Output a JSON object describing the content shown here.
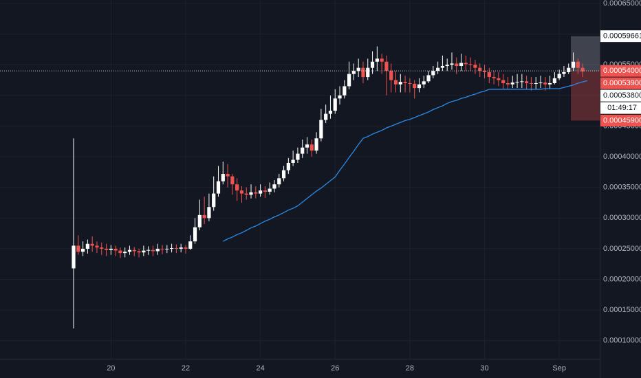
{
  "chart_data": {
    "type": "candlestick",
    "categories": [
      null,
      null,
      null,
      null,
      null,
      null,
      null,
      null,
      "20",
      null,
      null,
      null,
      null,
      null,
      null,
      null,
      null,
      null,
      null,
      null,
      null,
      null,
      null,
      null,
      "22",
      null,
      null,
      null,
      null,
      null,
      null,
      null,
      null,
      null,
      null,
      null,
      null,
      null,
      null,
      null,
      "24",
      null,
      null,
      null,
      null,
      null,
      null,
      null,
      null,
      null,
      null,
      null,
      null,
      null,
      null,
      null,
      "26",
      null,
      null,
      null,
      null,
      null,
      null,
      null,
      null,
      null,
      null,
      null,
      null,
      null,
      null,
      null,
      "28",
      null,
      null,
      null,
      null,
      null,
      null,
      null,
      null,
      null,
      null,
      null,
      null,
      null,
      null,
      null,
      "30",
      null,
      null,
      null,
      null,
      null,
      null,
      null,
      null,
      null,
      null,
      null,
      null,
      null,
      null,
      null,
      "Sep",
      null,
      null,
      null,
      null,
      null
    ],
    "open": [
      0.000218,
      0.000255,
      0.000245,
      0.00025,
      0.000258,
      0.000255,
      0.000252,
      0.00025,
      0.000248,
      0.00025,
      0.000247,
      0.000243,
      0.000245,
      0.000248,
      0.000246,
      0.000244,
      0.000247,
      0.000248,
      0.000246,
      0.00025,
      0.000249,
      0.00025,
      0.000251,
      0.00025,
      0.000252,
      0.00025,
      0.000262,
      0.000285,
      0.000305,
      0.0003,
      0.000318,
      0.00034,
      0.00036,
      0.000372,
      0.000368,
      0.000355,
      0.000345,
      0.00034,
      0.000338,
      0.000342,
      0.00034,
      0.000345,
      0.000343,
      0.000348,
      0.000355,
      0.000365,
      0.000378,
      0.00039,
      0.000395,
      0.000405,
      0.000415,
      0.00042,
      0.00041,
      0.00043,
      0.00046,
      0.00047,
      0.000475,
      0.000495,
      0.0005,
      0.000515,
      0.000535,
      0.00054,
      0.000545,
      0.00053,
      0.000545,
      0.000555,
      0.00056,
      0.000555,
      0.00054,
      0.000525,
      0.000518,
      0.000522,
      0.00052,
      0.000519,
      0.000512,
      0.000518,
      0.000523,
      0.000533,
      0.00054,
      0.000545,
      0.000548,
      0.00055,
      0.000552,
      0.000548,
      0.000553,
      0.000551,
      0.00055,
      0.000545,
      0.00054,
      0.000538,
      0.00053,
      0.000528,
      0.000525,
      0.00052,
      0.000518,
      0.000521,
      0.000522,
      0.000523,
      0.00052,
      0.000519,
      0.00052,
      0.000521,
      0.000518,
      0.00052,
      0.000528,
      0.000535,
      0.000538,
      0.000545,
      0.000555,
      0.000545
    ],
    "high": [
      0.00043,
      0.000272,
      0.000262,
      0.000265,
      0.00027,
      0.000262,
      0.00026,
      0.000258,
      0.000256,
      0.000255,
      0.000252,
      0.000252,
      0.000255,
      0.000253,
      0.00025,
      0.000255,
      0.000254,
      0.000255,
      0.000258,
      0.000256,
      0.000256,
      0.000258,
      0.000257,
      0.000258,
      0.000256,
      0.000272,
      0.0003,
      0.00033,
      0.000335,
      0.00034,
      0.000368,
      0.000385,
      0.000392,
      0.000388,
      0.000372,
      0.000365,
      0.000352,
      0.00035,
      0.000355,
      0.000352,
      0.000355,
      0.000352,
      0.000358,
      0.000362,
      0.000372,
      0.000385,
      0.000398,
      0.00041,
      0.000415,
      0.000428,
      0.000432,
      0.000428,
      0.00044,
      0.000478,
      0.000485,
      0.0005,
      0.00051,
      0.000515,
      0.000525,
      0.000555,
      0.000552,
      0.00056,
      0.000555,
      0.00056,
      0.000572,
      0.00058,
      0.000568,
      0.000565,
      0.000552,
      0.00054,
      0.000535,
      0.000532,
      0.000528,
      0.000525,
      0.000528,
      0.000532,
      0.00054,
      0.000548,
      0.000555,
      0.000565,
      0.00056,
      0.00057,
      0.000562,
      0.000568,
      0.000565,
      0.000562,
      0.000558,
      0.000552,
      0.00055,
      0.000545,
      0.00054,
      0.000538,
      0.000535,
      0.00053,
      0.000532,
      0.000535,
      0.000535,
      0.000532,
      0.00053,
      0.00053,
      0.000532,
      0.00053,
      0.000532,
      0.000538,
      0.000542,
      0.000548,
      0.000552,
      0.00057,
      0.00056,
      0.000552
    ],
    "low": [
      0.00012,
      0.00024,
      0.000238,
      0.000242,
      0.000245,
      0.000243,
      0.00024,
      0.000238,
      0.00024,
      0.000238,
      0.000235,
      0.000236,
      0.00024,
      0.000238,
      0.000236,
      0.000238,
      0.00024,
      0.000238,
      0.00024,
      0.000241,
      0.000243,
      0.000244,
      0.000243,
      0.000244,
      0.000242,
      0.000248,
      0.000258,
      0.00028,
      0.00029,
      0.000295,
      0.000312,
      0.000335,
      0.000355,
      0.00035,
      0.000338,
      0.000328,
      0.000325,
      0.00033,
      0.000332,
      0.000332,
      0.000335,
      0.000333,
      0.000338,
      0.000342,
      0.00035,
      0.00036,
      0.000372,
      0.000385,
      0.00039,
      0.000398,
      0.000405,
      0.0004,
      0.000405,
      0.000425,
      0.000455,
      0.000462,
      0.00047,
      0.000485,
      0.000495,
      0.00051,
      0.000525,
      0.00053,
      0.00052,
      0.000525,
      0.000535,
      0.00054,
      0.000535,
      0.0005,
      0.000505,
      0.000505,
      0.000505,
      0.000505,
      0.000505,
      0.000495,
      0.000505,
      0.000512,
      0.00052,
      0.000528,
      0.000535,
      0.00054,
      0.00054,
      0.000542,
      0.000535,
      0.00054,
      0.00054,
      0.00054,
      0.000535,
      0.00053,
      0.000528,
      0.00052,
      0.000518,
      0.000515,
      0.00051,
      0.00051,
      0.000512,
      0.000512,
      0.000512,
      0.00051,
      0.000508,
      0.00051,
      0.000512,
      0.000508,
      0.00051,
      0.000518,
      0.000525,
      0.00053,
      0.000535,
      0.00054,
      0.000535,
      0.00053
    ],
    "close": [
      0.000255,
      0.000245,
      0.00025,
      0.000258,
      0.000255,
      0.000252,
      0.00025,
      0.000248,
      0.00025,
      0.000247,
      0.000243,
      0.000245,
      0.000248,
      0.000246,
      0.000244,
      0.000247,
      0.000248,
      0.000246,
      0.00025,
      0.000249,
      0.00025,
      0.000251,
      0.00025,
      0.000252,
      0.00025,
      0.000262,
      0.000285,
      0.000305,
      0.0003,
      0.000318,
      0.00034,
      0.00036,
      0.000372,
      0.000368,
      0.000355,
      0.000345,
      0.00034,
      0.000338,
      0.000342,
      0.00034,
      0.000345,
      0.000343,
      0.000348,
      0.000355,
      0.000365,
      0.000378,
      0.00039,
      0.000395,
      0.000405,
      0.000415,
      0.00042,
      0.00041,
      0.00043,
      0.00046,
      0.00047,
      0.000475,
      0.000495,
      0.0005,
      0.000515,
      0.000535,
      0.00054,
      0.000545,
      0.00053,
      0.000545,
      0.000555,
      0.00056,
      0.000555,
      0.00054,
      0.000525,
      0.000518,
      0.000522,
      0.00052,
      0.000519,
      0.000512,
      0.000518,
      0.000523,
      0.000533,
      0.00054,
      0.000545,
      0.000548,
      0.00055,
      0.000552,
      0.000548,
      0.000553,
      0.000551,
      0.00055,
      0.000545,
      0.00054,
      0.000538,
      0.00053,
      0.000528,
      0.000525,
      0.00052,
      0.000518,
      0.000521,
      0.000522,
      0.000523,
      0.00052,
      0.000519,
      0.00052,
      0.000521,
      0.000518,
      0.00052,
      0.000528,
      0.000535,
      0.000538,
      0.000545,
      0.000555,
      0.000545,
      0.000539
    ],
    "up_color": "#ffffff",
    "down_color": "#ef5350",
    "moving_average": {
      "color": "#2a8be8",
      "values": [
        null,
        null,
        null,
        null,
        null,
        null,
        null,
        null,
        null,
        null,
        null,
        null,
        null,
        null,
        null,
        null,
        null,
        null,
        null,
        null,
        null,
        null,
        null,
        null,
        null,
        null,
        null,
        null,
        null,
        null,
        null,
        null,
        0.000262,
        0.000266,
        0.000269,
        0.000273,
        0.000276,
        0.00028,
        0.000284,
        0.000287,
        0.000291,
        0.000295,
        0.000298,
        0.000302,
        0.000305,
        0.000309,
        0.000313,
        0.000316,
        0.00032,
        0.000326,
        0.000332,
        0.000338,
        0.000344,
        0.000349,
        0.000355,
        0.000361,
        0.000367,
        0.000378,
        0.000388,
        0.000399,
        0.000409,
        0.00042,
        0.00043,
        0.000433,
        0.000437,
        0.00044,
        0.000443,
        0.000447,
        0.00045,
        0.000453,
        0.000456,
        0.000459,
        0.000461,
        0.000464,
        0.000467,
        0.00047,
        0.000473,
        0.000477,
        0.00048,
        0.000483,
        0.000487,
        0.00049,
        0.000492,
        0.000495,
        0.000497,
        0.0005,
        0.000502,
        0.000505,
        0.000507,
        0.00051,
        0.00051,
        0.00051,
        0.00051,
        0.00051,
        0.00051,
        0.00051,
        0.00051,
        0.00051,
        0.00051,
        0.00051,
        0.00051,
        0.000511,
        0.000511,
        0.000511,
        0.000511,
        0.000513,
        0.000515,
        0.000517,
        0.00052,
        0.000522,
        0.000524
      ]
    },
    "ylim": [
      7.06e-05,
      0.0006556
    ],
    "yticks": [
      {
        "value": 0.0001,
        "label": "0.00010000"
      },
      {
        "value": 0.00015,
        "label": "0.00015000"
      },
      {
        "value": 0.0002,
        "label": "0.00020000"
      },
      {
        "value": 0.00025,
        "label": "0.00025000"
      },
      {
        "value": 0.0003,
        "label": "0.00030000"
      },
      {
        "value": 0.00035,
        "label": "0.00035000"
      },
      {
        "value": 0.0004,
        "label": "0.00040000"
      },
      {
        "value": 0.00045,
        "label": "0.00045000"
      },
      {
        "value": 0.0005,
        "label": "0.00050000"
      },
      {
        "value": 0.00055,
        "label": "0.00055000"
      },
      {
        "value": 0.0006,
        "label": "0.00060000"
      },
      {
        "value": 0.00065,
        "label": "0.00065000"
      }
    ],
    "grid": true,
    "price_labels": [
      {
        "value": 0.00059661,
        "label": "0.00059661",
        "color": "#ffffff"
      },
      {
        "value": 0.00054,
        "label": "0.00054000",
        "color": "#ef5350"
      },
      {
        "value": 0.000539,
        "label": "0.00053900",
        "color": "#ef5350"
      },
      {
        "value": 0.000538,
        "label": "0.00053800",
        "color": "#ffffff"
      },
      {
        "value": 0.000459,
        "label": "0.00045900",
        "color": "#ef5350"
      }
    ],
    "countdown": "01:49:17"
  }
}
